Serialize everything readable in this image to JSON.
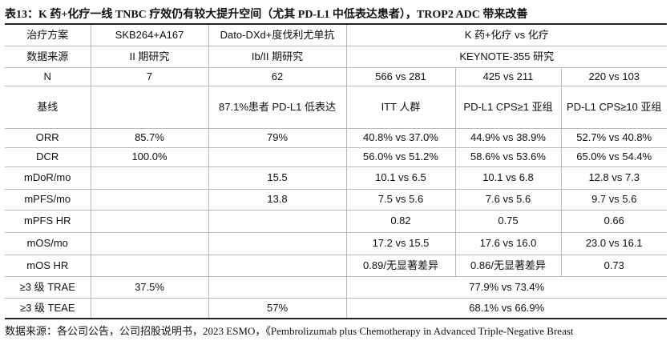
{
  "title": "表13：K 药+化疗一线 TNBC 疗效仍有较大提升空间（尤其 PD-L1 中低表达患者），TROP2 ADC 带来改善",
  "table": {
    "rows": [
      [
        "治疗方案",
        "SKB264+A167",
        "Dato-DXd+度伐利尤单抗",
        "K 药+化疗 vs 化疗"
      ],
      [
        "数据来源",
        "II 期研究",
        "Ib/II 期研究",
        "KEYNOTE-355 研究"
      ],
      [
        "N",
        "7",
        "62",
        "566 vs 281",
        "425 vs 211",
        "220 vs 103"
      ],
      [
        "基线",
        "87.1%患者 PD-L1 低表达",
        "ITT 人群",
        "PD-L1 CPS≥1 亚组",
        "PD-L1 CPS≥10 亚组"
      ],
      [
        "ORR",
        "85.7%",
        "79%",
        "40.8% vs 37.0%",
        "44.9% vs 38.9%",
        "52.7% vs 40.8%"
      ],
      [
        "DCR",
        "100.0%",
        "56.0% vs 51.2%",
        "58.6% vs 53.6%",
        "65.0% vs 54.4%"
      ],
      [
        "mDoR/mo",
        "15.5",
        "10.1 vs 6.5",
        "10.1 vs 6.8",
        "12.8 vs 7.3"
      ],
      [
        "mPFS/mo",
        "13.8",
        "7.5 vs 5.6",
        "7.6 vs 5.6",
        "9.7 vs 5.6"
      ],
      [
        "mPFS HR",
        "0.82",
        "0.75",
        "0.66"
      ],
      [
        "mOS/mo",
        "17.2 vs 15.5",
        "17.6 vs 16.0",
        "23.0 vs 16.1"
      ],
      [
        "mOS HR",
        "0.89/无显著差异",
        "0.86/无显著差异",
        "0.73"
      ],
      [
        "≥3 级 TRAE",
        "37.5%",
        "77.9% vs 73.4%"
      ],
      [
        "≥3 级 TEAE",
        "57%",
        "68.1% vs 66.9%"
      ]
    ]
  },
  "source": "数据来源：各公司公告，公司招股说明书，2023 ESMO，《Pembrolizumab plus Chemotherapy in Advanced Triple-Negative Breast"
}
